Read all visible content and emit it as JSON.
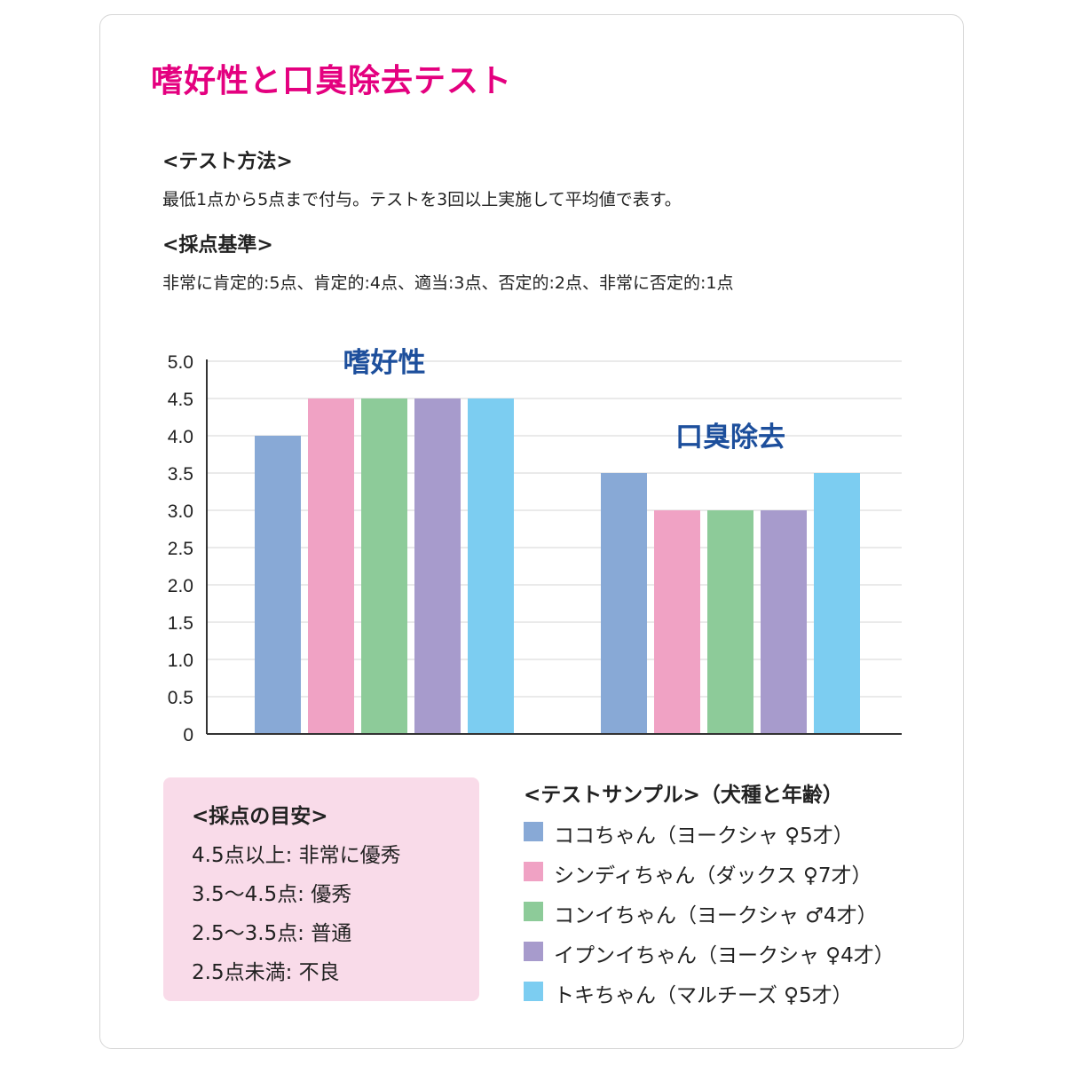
{
  "page": {
    "title": "嗜好性と口臭除去テスト",
    "method_heading": "<テスト方法>",
    "method_text": "最低1点から5点まで付与。テストを3回以上実施して平均値で表す。",
    "criteria_heading": "<採点基準>",
    "criteria_text": "非常に肯定的:5点、肯定的:4点、適当:3点、否定的:2点、非常に否定的:1点"
  },
  "guide": {
    "heading": "<採点の目安>",
    "items": [
      "4.5点以上: 非常に優秀",
      "3.5〜4.5点: 優秀",
      "2.5〜3.5点: 普通",
      "2.5点未満: 不良"
    ]
  },
  "legend": {
    "heading": "<テストサンプル>（犬種と年齢）"
  },
  "chart_data": {
    "type": "bar",
    "categories": [
      "嗜好性",
      "口臭除去"
    ],
    "series": [
      {
        "name": "ココちゃん（ヨークシャ ♀5才）",
        "color": "#88a9d6",
        "values": [
          4.0,
          3.5
        ]
      },
      {
        "name": "シンディちゃん（ダックス ♀7才）",
        "color": "#f0a2c4",
        "values": [
          4.5,
          3.0
        ]
      },
      {
        "name": "コンイちゃん（ヨークシャ ♂4才）",
        "color": "#8dcb99",
        "values": [
          4.5,
          3.0
        ]
      },
      {
        "name": "イプンイちゃん（ヨークシャ ♀4才）",
        "color": "#a79bcc",
        "values": [
          4.5,
          3.0
        ]
      },
      {
        "name": "トキちゃん（マルチーズ ♀5才）",
        "color": "#7ccdf1",
        "values": [
          4.5,
          3.5
        ]
      }
    ],
    "yticks": [
      "0",
      "0.5",
      "1.0",
      "1.5",
      "2.0",
      "2.5",
      "3.0",
      "3.5",
      "4.0",
      "4.5",
      "5.0"
    ],
    "ylim": [
      0,
      5
    ],
    "grid": true,
    "category_label_color": "#1d4f9c"
  }
}
